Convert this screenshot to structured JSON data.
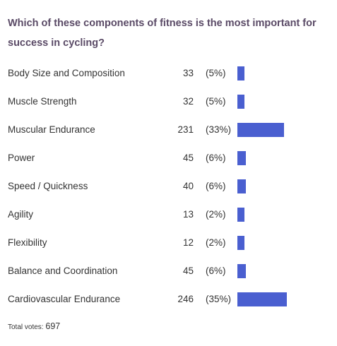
{
  "poll": {
    "question": "Which of these components of fitness is the most important for success in cycling?",
    "bar_color": "#4a5fd0",
    "answers": [
      {
        "label": "Body Size and Composition",
        "votes": "33",
        "percent": "(5%)",
        "share": 0.05
      },
      {
        "label": "Muscle Strength",
        "votes": "32",
        "percent": "(5%)",
        "share": 0.05
      },
      {
        "label": "Muscular Endurance",
        "votes": "231",
        "percent": "(33%)",
        "share": 0.33
      },
      {
        "label": "Power",
        "votes": "45",
        "percent": "(6%)",
        "share": 0.06
      },
      {
        "label": "Speed / Quickness",
        "votes": "40",
        "percent": "(6%)",
        "share": 0.06
      },
      {
        "label": "Agility",
        "votes": "13",
        "percent": "(2%)",
        "share": 0.02
      },
      {
        "label": "Flexibility",
        "votes": "12",
        "percent": "(2%)",
        "share": 0.02
      },
      {
        "label": "Balance and Coordination",
        "votes": "45",
        "percent": "(6%)",
        "share": 0.06
      },
      {
        "label": "Cardiovascular Endurance",
        "votes": "246",
        "percent": "(35%)",
        "share": 0.35
      }
    ],
    "total_label": "Total votes:",
    "total_votes": "697"
  }
}
